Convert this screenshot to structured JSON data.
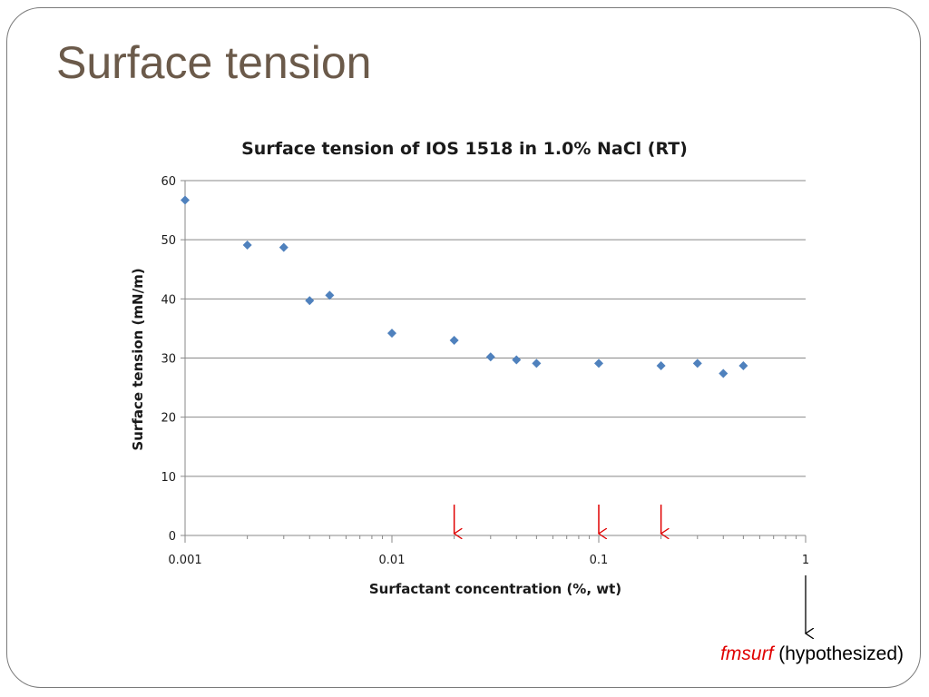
{
  "slide": {
    "title": "Surface tension"
  },
  "annotation": {
    "italic_text": "fmsurf",
    "rest_text": " (hypothesized)"
  },
  "colors": {
    "marker": "#4f81bd",
    "arrow": "#e00000",
    "grid": "#888888",
    "title": "#6b5a4a"
  },
  "chart_data": {
    "type": "scatter",
    "title": "Surface tension of IOS 1518 in 1.0% NaCl (RT)",
    "xlabel": "Surfactant concentration (%, wt)",
    "ylabel": "Surface tension (mN/m)",
    "x_scale": "log",
    "xlim": [
      0.001,
      1
    ],
    "ylim": [
      0,
      60
    ],
    "x_ticks": [
      0.001,
      0.01,
      0.1,
      1
    ],
    "x_tick_labels": [
      "0.001",
      "0.01",
      "0.1",
      "1"
    ],
    "y_ticks": [
      0,
      10,
      20,
      30,
      40,
      50,
      60
    ],
    "y_tick_labels": [
      "0",
      "10",
      "20",
      "30",
      "40",
      "50",
      "60"
    ],
    "grid": "horizontal",
    "legend": "none",
    "series": [
      {
        "x": [
          0.001,
          0.002,
          0.003,
          0.004,
          0.005,
          0.01,
          0.02,
          0.03,
          0.04,
          0.05,
          0.1,
          0.2,
          0.3,
          0.4,
          0.5
        ],
        "y": [
          56.7,
          49.1,
          48.7,
          39.7,
          40.6,
          34.2,
          33.0,
          30.2,
          29.7,
          29.1,
          29.1,
          28.7,
          29.1,
          27.4,
          28.7
        ]
      }
    ],
    "marker_arrows_x": [
      0.02,
      0.1,
      0.2
    ],
    "outside_arrow_x": 1
  }
}
